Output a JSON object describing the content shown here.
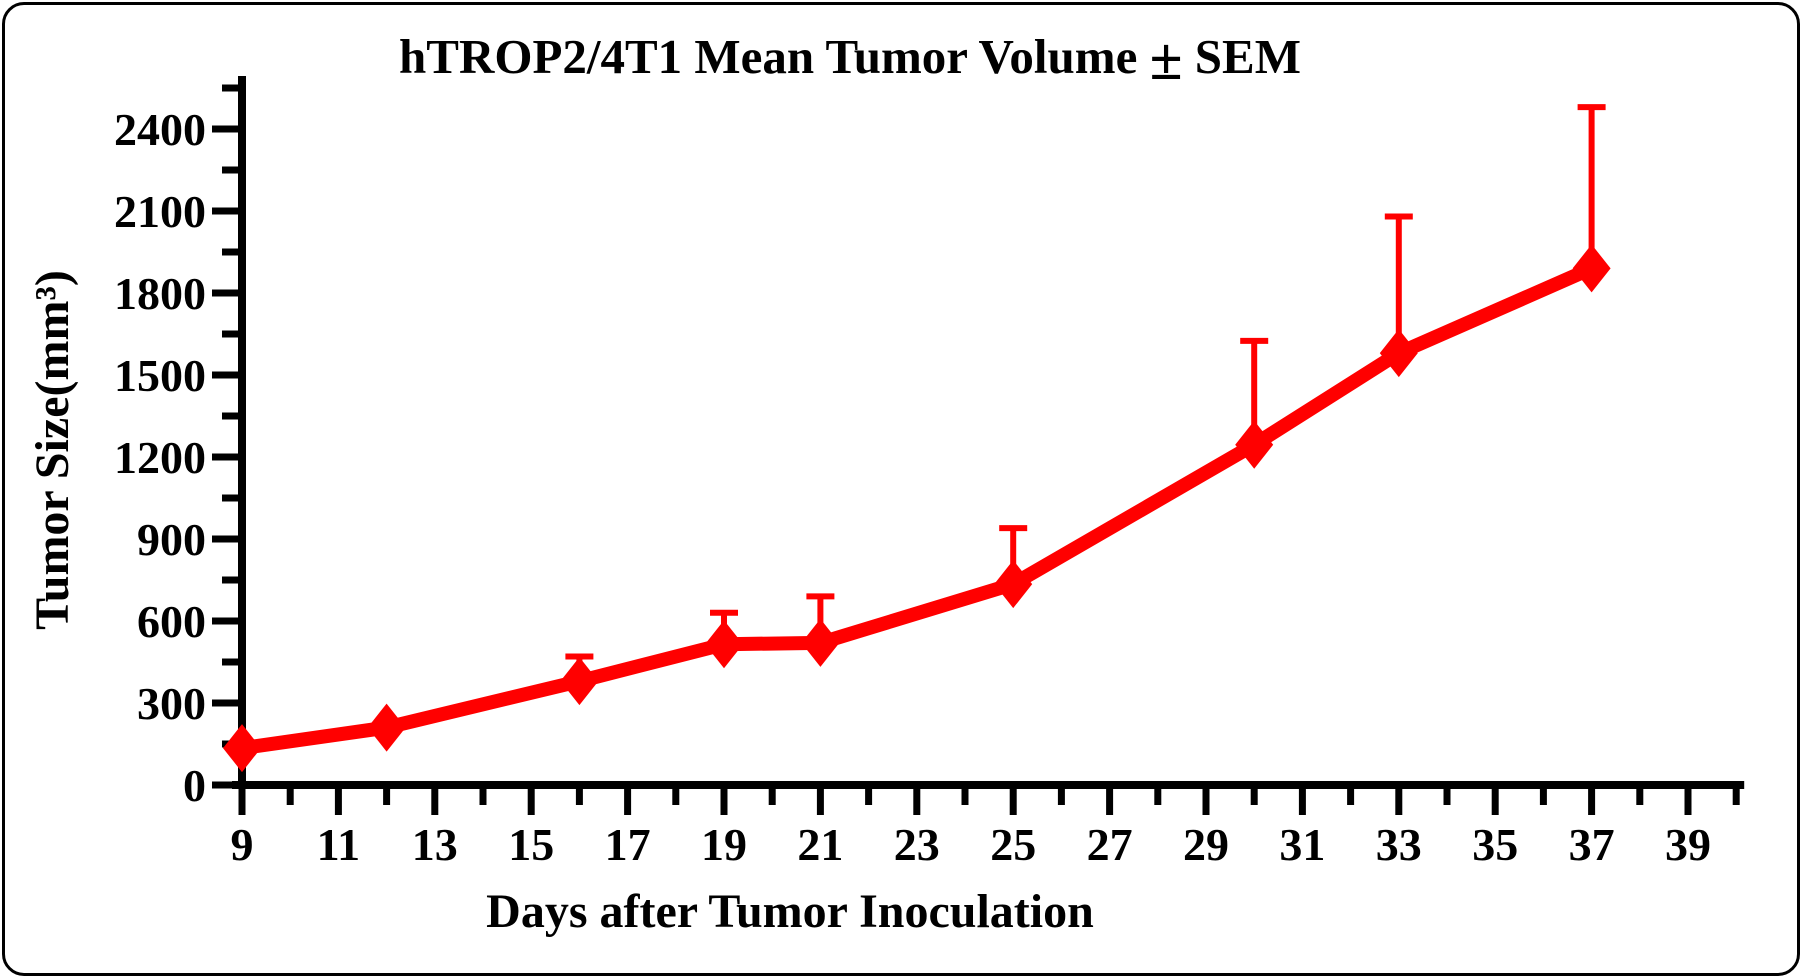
{
  "figure_title": {
    "part1": "hTROP2/4T1 Mean Tumor Volume ",
    "pm": "±",
    "part2": " SEM"
  },
  "chart_data": {
    "type": "line",
    "title": "hTROP2/4T1 Mean Tumor Volume ± SEM",
    "xlabel": "Days after Tumor Inoculation",
    "ylabel": "Tumor Size(mm³)",
    "legend_position": "none",
    "grid": false,
    "x_axis": {
      "range": [
        9,
        40
      ],
      "major_tick_labels": [
        9,
        11,
        13,
        15,
        17,
        19,
        21,
        23,
        25,
        27,
        29,
        31,
        33,
        35,
        37,
        39
      ],
      "minor_tick_step": 1
    },
    "y_axis": {
      "range": [
        0,
        2550
      ],
      "major_tick_labels": [
        0,
        300,
        600,
        900,
        1200,
        1500,
        1800,
        2100,
        2400
      ],
      "major_tick_step": 300,
      "minor_tick_step": 150
    },
    "series": [
      {
        "name": "hTROP2/4T1 mean tumor volume",
        "color": "#FF0000",
        "marker": "diamond",
        "error_bars": "+SEM (upper only)",
        "points": [
          {
            "day": 9,
            "mean": 135,
            "sem": 0
          },
          {
            "day": 12,
            "mean": 210,
            "sem": 0
          },
          {
            "day": 16,
            "mean": 380,
            "sem": 90
          },
          {
            "day": 19,
            "mean": 515,
            "sem": 115
          },
          {
            "day": 21,
            "mean": 520,
            "sem": 170
          },
          {
            "day": 25,
            "mean": 735,
            "sem": 205
          },
          {
            "day": 30,
            "mean": 1245,
            "sem": 380
          },
          {
            "day": 33,
            "mean": 1580,
            "sem": 500
          },
          {
            "day": 37,
            "mean": 1890,
            "sem": 590
          }
        ]
      }
    ]
  }
}
